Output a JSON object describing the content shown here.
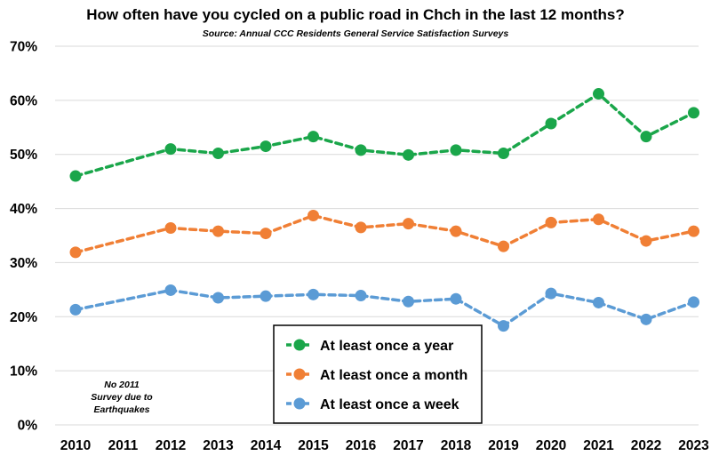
{
  "chart_data": {
    "type": "line",
    "title": "How often have you cycled on a public road in Chch in the last 12 months?",
    "subtitle": "Source: Annual CCC Residents General Service Satisfaction Surveys",
    "categories": [
      "2010",
      "2011",
      "2012",
      "2013",
      "2014",
      "2015",
      "2016",
      "2017",
      "2018",
      "2019",
      "2020",
      "2021",
      "2022",
      "2023"
    ],
    "ylim": [
      0,
      70
    ],
    "yticks": [
      "0%",
      "10%",
      "20%",
      "30%",
      "40%",
      "50%",
      "60%",
      "70%"
    ],
    "grid": true,
    "legend_placement": "bottom-center",
    "annotation": [
      "No 2011",
      "Survey due to",
      "Earthquakes"
    ],
    "series": [
      {
        "name": "At least once a year",
        "color": "#1aa64a",
        "values": [
          46.0,
          null,
          51.0,
          50.2,
          51.5,
          53.3,
          50.8,
          49.9,
          50.8,
          50.2,
          55.7,
          61.2,
          53.3,
          57.7
        ]
      },
      {
        "name": "At least once a month",
        "color": "#f07f35",
        "values": [
          31.9,
          null,
          36.4,
          35.8,
          35.4,
          38.7,
          36.5,
          37.2,
          35.8,
          33.0,
          37.4,
          38.0,
          34.0,
          35.8
        ]
      },
      {
        "name": "At least once a week",
        "color": "#5b9bd5",
        "values": [
          21.3,
          null,
          24.9,
          23.5,
          23.8,
          24.1,
          23.9,
          22.8,
          23.3,
          18.3,
          24.3,
          22.6,
          19.5,
          22.7
        ]
      }
    ]
  }
}
